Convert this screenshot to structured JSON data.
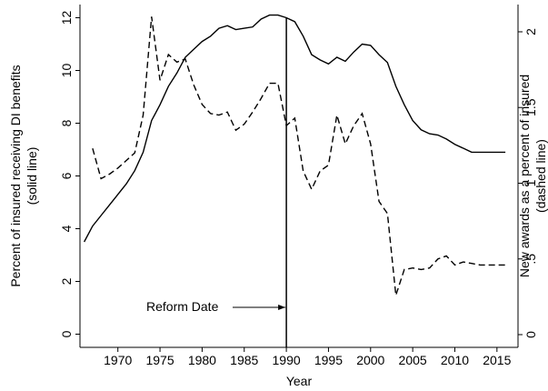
{
  "chart_data": {
    "type": "line",
    "ylabel": [
      "Percent of insured receiving DI benefits",
      "(solid line)"
    ],
    "y2label": [
      "New awards as a percent of insured",
      "(dashed line)"
    ],
    "xlabel": "Year",
    "annotation": {
      "text": "Reform Date",
      "x": 1990
    },
    "x": [
      1966,
      1967,
      1968,
      1969,
      1970,
      1971,
      1972,
      1973,
      1974,
      1975,
      1976,
      1977,
      1978,
      1979,
      1980,
      1981,
      1982,
      1983,
      1984,
      1985,
      1986,
      1987,
      1988,
      1989,
      1990,
      1991,
      1992,
      1993,
      1994,
      1995,
      1996,
      1997,
      1998,
      1999,
      2000,
      2001,
      2002,
      2003,
      2004,
      2005,
      2006,
      2007,
      2008,
      2009,
      2010,
      2011,
      2012,
      2013,
      2014,
      2015,
      2016
    ],
    "series": [
      {
        "name": "Percent of insured receiving DI benefits",
        "color": "#000000",
        "dash": "solid",
        "values": [
          3.5,
          4.1,
          4.5,
          4.9,
          5.3,
          5.7,
          6.2,
          6.9,
          8.1,
          8.7,
          9.4,
          9.9,
          10.5,
          10.8,
          11.1,
          11.3,
          11.6,
          11.7,
          11.55,
          11.6,
          11.65,
          11.95,
          12.1,
          12.1,
          12.0,
          11.85,
          11.3,
          10.6,
          10.4,
          10.25,
          10.5,
          10.35,
          10.7,
          11.0,
          10.95,
          10.6,
          10.3,
          9.4,
          8.7,
          8.1,
          7.75,
          7.6,
          7.55,
          7.4,
          7.2,
          7.05,
          6.9,
          6.9,
          6.9,
          6.9,
          6.9
        ]
      },
      {
        "name": "New awards as a percent of insured",
        "color": "#000000",
        "dash": "dashed",
        "axis": "y2",
        "values": [
          null,
          1.23,
          1.03,
          1.06,
          1.1,
          1.15,
          1.2,
          1.45,
          2.1,
          1.68,
          1.85,
          1.8,
          1.82,
          1.65,
          1.52,
          1.46,
          1.45,
          1.47,
          1.35,
          1.39,
          1.47,
          1.56,
          1.66,
          1.66,
          1.38,
          1.43,
          1.08,
          0.96,
          1.08,
          1.12,
          1.45,
          1.26,
          1.38,
          1.46,
          1.26,
          0.88,
          0.8,
          0.26,
          0.43,
          0.44,
          0.43,
          0.44,
          0.5,
          0.52,
          0.46,
          0.48,
          0.47,
          0.46,
          0.46,
          0.46,
          0.46
        ]
      }
    ],
    "xlim": [
      1965.5,
      2017.5
    ],
    "xticks": [
      1970,
      1975,
      1980,
      1985,
      1990,
      1995,
      2000,
      2005,
      2010,
      2015
    ],
    "ylim": [
      -0.5,
      12.5
    ],
    "yticks": [
      0,
      2,
      4,
      6,
      8,
      10,
      12
    ],
    "y2lim": [
      -0.084,
      2.18
    ],
    "y2ticks": [
      0,
      {
        "value": 0.5,
        "label": ".5"
      },
      1,
      1.5,
      2
    ],
    "grid": false
  }
}
